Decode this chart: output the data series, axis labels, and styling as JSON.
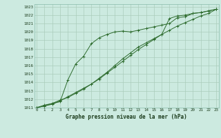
{
  "xlabel": "Graphe pression niveau de la mer (hPa)",
  "bg_color": "#cceae0",
  "line_color": "#2d6b2d",
  "grid_color": "#aaccbb",
  "x_min": 0,
  "x_max": 23,
  "y_min": 1011,
  "y_max": 1023,
  "line1": [
    1011.0,
    1011.2,
    1011.5,
    1011.7,
    1014.3,
    1016.2,
    1017.1,
    1018.6,
    1019.3,
    1019.7,
    1020.0,
    1020.1,
    1020.0,
    1020.2,
    1020.4,
    1020.6,
    1020.8,
    1021.0,
    1021.7,
    1021.8,
    1022.2,
    1022.3,
    1022.5,
    1022.7
  ],
  "line2": [
    1011.0,
    1011.2,
    1011.4,
    1011.8,
    1012.3,
    1012.8,
    1013.3,
    1013.8,
    1014.5,
    1015.2,
    1016.0,
    1016.8,
    1017.5,
    1018.2,
    1018.7,
    1019.2,
    1019.7,
    1021.6,
    1021.9,
    1022.0,
    1022.2,
    1022.3,
    1022.5,
    1022.7
  ],
  "line3": [
    1011.0,
    1011.3,
    1011.5,
    1011.9,
    1012.2,
    1012.7,
    1013.2,
    1013.8,
    1014.4,
    1015.1,
    1015.8,
    1016.5,
    1017.2,
    1017.9,
    1018.5,
    1019.1,
    1019.7,
    1020.2,
    1020.7,
    1021.1,
    1021.5,
    1021.9,
    1022.2,
    1022.7
  ]
}
